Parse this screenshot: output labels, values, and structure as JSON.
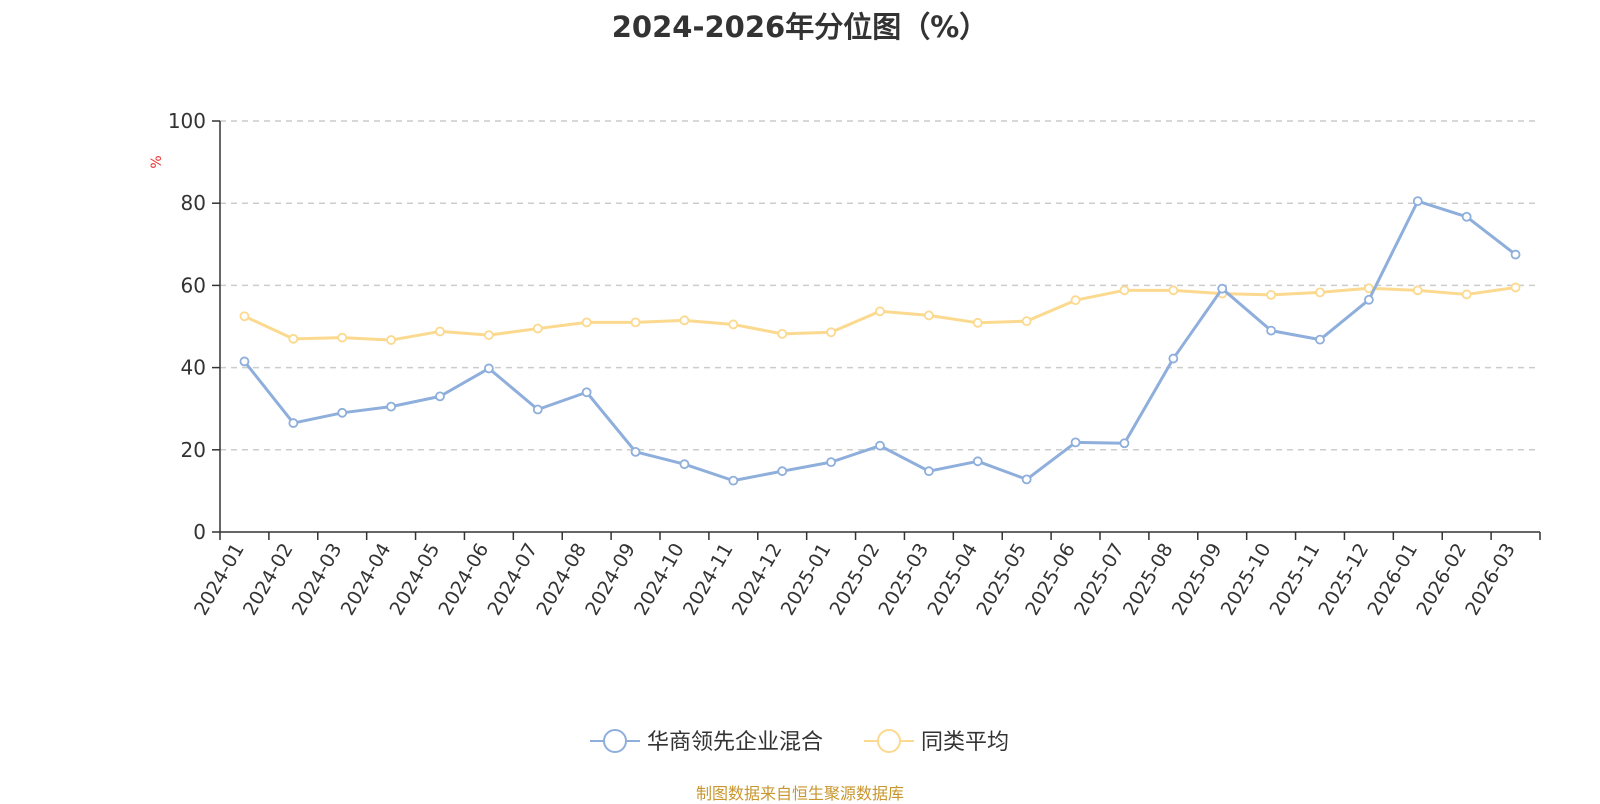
{
  "colors": {
    "series_1": "#8eaedc",
    "series_2": "#fbd98f",
    "unit": "#e8332f",
    "grid": "#cccccc",
    "axis": "#333333",
    "source": "#c8962e"
  },
  "footer": {
    "source": "制图数据来自恒生聚源数据库"
  },
  "chart_data": {
    "type": "line",
    "title": "2024-2026年分位图（%）",
    "ylabel": "%",
    "xlabel": "",
    "ylim": [
      0,
      100
    ],
    "yticks": [
      0,
      20,
      40,
      60,
      80,
      100
    ],
    "grid": true,
    "legend_position": "bottom-center",
    "categories": [
      "2024-01",
      "2024-02",
      "2024-03",
      "2024-04",
      "2024-05",
      "2024-06",
      "2024-07",
      "2024-08",
      "2024-09",
      "2024-10",
      "2024-11",
      "2024-12",
      "2025-01",
      "2025-02",
      "2025-03",
      "2025-04",
      "2025-05",
      "2025-06",
      "2025-07",
      "2025-08",
      "2025-09",
      "2025-10",
      "2025-11",
      "2025-12",
      "2026-01",
      "2026-02",
      "2026-03"
    ],
    "series": [
      {
        "name": "华商领先企业混合",
        "values": [
          41.5,
          26.5,
          29,
          30.5,
          33,
          39.8,
          29.8,
          34,
          19.5,
          16.5,
          12.5,
          14.8,
          17,
          21,
          14.8,
          17.2,
          12.8,
          21.8,
          21.6,
          42.2,
          59.2,
          49,
          46.8,
          56.5,
          80.5,
          76.7,
          67.5
        ]
      },
      {
        "name": "同类平均",
        "values": [
          52.5,
          47,
          47.3,
          46.7,
          48.8,
          47.9,
          49.5,
          51,
          51,
          51.5,
          50.5,
          48.2,
          48.6,
          53.7,
          52.7,
          50.9,
          51.3,
          56.4,
          58.8,
          58.8,
          58,
          57.7,
          58.3,
          59.3,
          58.8,
          57.8,
          59.5
        ]
      }
    ]
  }
}
